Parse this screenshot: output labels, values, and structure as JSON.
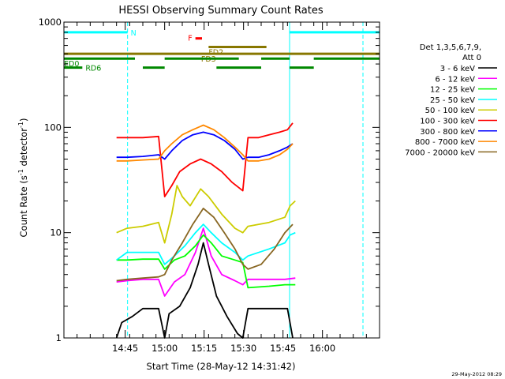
{
  "chart_data": {
    "type": "line",
    "title": "HESSI Observing Summary Count Rates",
    "xlabel": "Start Time (28-May-12 14:31:42)",
    "ylabel_main": "Count Rate (s",
    "ylabel_sup1": "-1",
    "ylabel_mid": " detector",
    "ylabel_sup2": "-1",
    "ylabel_end": ")",
    "y_scale": "log",
    "ylim": [
      1,
      1000
    ],
    "xlim_minutes": [
      -10,
      110
    ],
    "x_ticks": [
      {
        "label": "14:45",
        "minutes": 13.3
      },
      {
        "label": "15:00",
        "minutes": 28.3
      },
      {
        "label": "15:15",
        "minutes": 43.3
      },
      {
        "label": "15:30",
        "minutes": 58.3
      },
      {
        "label": "15:45",
        "minutes": 73.3
      },
      {
        "label": "16:00",
        "minutes": 88.3
      }
    ],
    "y_ticks": [
      {
        "label": "1",
        "value": 1
      },
      {
        "label": "10",
        "value": 10
      },
      {
        "label": "100",
        "value": 100
      },
      {
        "label": "1000",
        "value": 1000
      }
    ],
    "legend_header": [
      "Det 1,3,5,6,7,9,",
      "Att 0"
    ],
    "legend_placement": "right",
    "series": [
      {
        "name": "3 - 6 keV",
        "color": "#000000",
        "points": [
          [
            10,
            1.0
          ],
          [
            12,
            1.4
          ],
          [
            16,
            1.6
          ],
          [
            20,
            1.9
          ],
          [
            26,
            1.9
          ],
          [
            28.3,
            1.0
          ],
          [
            30,
            1.7
          ],
          [
            34,
            2.0
          ],
          [
            38,
            3.0
          ],
          [
            41,
            5.0
          ],
          [
            43,
            8.0
          ],
          [
            45,
            5.0
          ],
          [
            48,
            2.5
          ],
          [
            52,
            1.6
          ],
          [
            56,
            1.1
          ],
          [
            58,
            1.0
          ],
          [
            60,
            1.9
          ],
          [
            70,
            1.9
          ],
          [
            75,
            1.9
          ],
          [
            77,
            1.0
          ]
        ]
      },
      {
        "name": "6 - 12 keV",
        "color": "#ff00ff",
        "points": [
          [
            10,
            3.4
          ],
          [
            14,
            3.5
          ],
          [
            20,
            3.6
          ],
          [
            26,
            3.6
          ],
          [
            28.3,
            2.5
          ],
          [
            32,
            3.4
          ],
          [
            36,
            4.0
          ],
          [
            40,
            6.5
          ],
          [
            43,
            11.0
          ],
          [
            46,
            6.0
          ],
          [
            50,
            4.0
          ],
          [
            55,
            3.5
          ],
          [
            58,
            3.2
          ],
          [
            60,
            3.6
          ],
          [
            68,
            3.6
          ],
          [
            74,
            3.6
          ],
          [
            78,
            3.7
          ]
        ]
      },
      {
        "name": "12 - 25 keV",
        "color": "#00ff00",
        "points": [
          [
            10,
            5.5
          ],
          [
            14,
            5.5
          ],
          [
            20,
            5.6
          ],
          [
            26,
            5.6
          ],
          [
            28.3,
            4.5
          ],
          [
            32,
            5.5
          ],
          [
            36,
            6.0
          ],
          [
            40,
            7.5
          ],
          [
            43,
            9.5
          ],
          [
            46,
            8.0
          ],
          [
            50,
            6.0
          ],
          [
            55,
            5.5
          ],
          [
            58,
            5.2
          ],
          [
            60,
            3.0
          ],
          [
            68,
            3.1
          ],
          [
            74,
            3.2
          ],
          [
            78,
            3.2
          ]
        ]
      },
      {
        "name": "25 - 50 keV",
        "color": "#00ffff",
        "points": [
          [
            10,
            5.5
          ],
          [
            14,
            6.5
          ],
          [
            20,
            6.5
          ],
          [
            26,
            6.5
          ],
          [
            28.3,
            5.0
          ],
          [
            32,
            6.0
          ],
          [
            36,
            7.5
          ],
          [
            40,
            10.0
          ],
          [
            43,
            12.0
          ],
          [
            46,
            10.0
          ],
          [
            50,
            8.0
          ],
          [
            55,
            6.5
          ],
          [
            58,
            5.5
          ],
          [
            60,
            6.0
          ],
          [
            68,
            7.0
          ],
          [
            74,
            8.0
          ],
          [
            76,
            9.5
          ],
          [
            78,
            10.0
          ]
        ]
      },
      {
        "name": "50 - 100 keV",
        "color": "#cccc00",
        "points": [
          [
            10,
            10.0
          ],
          [
            14,
            11.0
          ],
          [
            20,
            11.5
          ],
          [
            26,
            12.5
          ],
          [
            28.3,
            8.0
          ],
          [
            31,
            15.0
          ],
          [
            33,
            28.0
          ],
          [
            35,
            22.0
          ],
          [
            38,
            18.0
          ],
          [
            42,
            26.0
          ],
          [
            45,
            22.0
          ],
          [
            50,
            15.0
          ],
          [
            55,
            11.0
          ],
          [
            58,
            10.0
          ],
          [
            60,
            11.5
          ],
          [
            68,
            12.5
          ],
          [
            74,
            14.0
          ],
          [
            76,
            18.0
          ],
          [
            78,
            20.0
          ]
        ]
      },
      {
        "name": "100 - 300 keV",
        "color": "#ff0000",
        "points": [
          [
            10,
            80.0
          ],
          [
            14,
            80.0
          ],
          [
            20,
            80.0
          ],
          [
            26,
            82.0
          ],
          [
            28.3,
            22.0
          ],
          [
            31,
            28.0
          ],
          [
            34,
            38.0
          ],
          [
            38,
            45.0
          ],
          [
            42,
            50.0
          ],
          [
            46,
            45.0
          ],
          [
            50,
            38.0
          ],
          [
            54,
            30.0
          ],
          [
            58,
            25.0
          ],
          [
            60,
            80.0
          ],
          [
            64,
            80.0
          ],
          [
            68,
            85.0
          ],
          [
            72,
            90.0
          ],
          [
            75,
            95.0
          ],
          [
            77,
            110.0
          ]
        ]
      },
      {
        "name": "300 - 800 keV",
        "color": "#0000ff",
        "points": [
          [
            10,
            52.0
          ],
          [
            14,
            52.0
          ],
          [
            20,
            53.0
          ],
          [
            26,
            55.0
          ],
          [
            28.3,
            50.0
          ],
          [
            31,
            60.0
          ],
          [
            35,
            75.0
          ],
          [
            39,
            85.0
          ],
          [
            43,
            90.0
          ],
          [
            47,
            85.0
          ],
          [
            51,
            75.0
          ],
          [
            55,
            62.0
          ],
          [
            58,
            50.0
          ],
          [
            60,
            52.0
          ],
          [
            64,
            52.0
          ],
          [
            68,
            55.0
          ],
          [
            72,
            60.0
          ],
          [
            75,
            65.0
          ],
          [
            77,
            70.0
          ]
        ]
      },
      {
        "name": "800 - 7000 keV",
        "color": "#ff8800",
        "points": [
          [
            10,
            48.0
          ],
          [
            14,
            48.0
          ],
          [
            20,
            49.0
          ],
          [
            26,
            50.0
          ],
          [
            28.3,
            60.0
          ],
          [
            31,
            70.0
          ],
          [
            35,
            85.0
          ],
          [
            39,
            95.0
          ],
          [
            43,
            105.0
          ],
          [
            47,
            95.0
          ],
          [
            51,
            80.0
          ],
          [
            55,
            65.0
          ],
          [
            58,
            55.0
          ],
          [
            60,
            48.0
          ],
          [
            64,
            48.0
          ],
          [
            68,
            50.0
          ],
          [
            72,
            55.0
          ],
          [
            75,
            62.0
          ],
          [
            77,
            70.0
          ]
        ]
      },
      {
        "name": "7000 - 20000 keV",
        "color": "#886622",
        "points": [
          [
            10,
            3.5
          ],
          [
            14,
            3.6
          ],
          [
            20,
            3.7
          ],
          [
            26,
            3.8
          ],
          [
            28.3,
            4.0
          ],
          [
            31,
            5.5
          ],
          [
            35,
            8.0
          ],
          [
            39,
            12.0
          ],
          [
            43,
            17.0
          ],
          [
            47,
            14.0
          ],
          [
            51,
            10.0
          ],
          [
            55,
            7.0
          ],
          [
            58,
            5.0
          ],
          [
            60,
            4.5
          ],
          [
            65,
            5.0
          ],
          [
            70,
            7.0
          ],
          [
            74,
            10.0
          ],
          [
            77,
            12.0
          ]
        ]
      }
    ],
    "flag_bars": [
      {
        "label": "N",
        "color": "#00ffff",
        "label_color": "#00ffff",
        "label_side": "right",
        "value": 800,
        "segments": [
          [
            -10,
            14.2
          ],
          [
            75.8,
            110
          ]
        ]
      },
      {
        "label": "F",
        "color": "#ff0000",
        "label_color": "#ff0000",
        "label_side": "left",
        "value": 700,
        "segments": [
          [
            40,
            42.5
          ]
        ]
      },
      {
        "label": "FD2",
        "color": "#887700",
        "label_color": "#887700",
        "label_side": "left-below",
        "value": 580,
        "segments": [
          [
            45,
            67
          ]
        ]
      },
      {
        "label": "FD3",
        "color": "#887700",
        "label_color": "#887700",
        "label_side": "center-below",
        "value": 500,
        "segments": [
          [
            -10,
            110
          ]
        ]
      },
      {
        "label": "ED0",
        "color": "#008800",
        "label_color": "#008800",
        "label_side": "left-below",
        "value": 450,
        "segments": [
          [
            -10,
            17
          ],
          [
            28.3,
            56.5
          ],
          [
            65,
            75.8
          ],
          [
            85,
            110
          ]
        ]
      },
      {
        "label": "RD6",
        "color": "#008800",
        "label_color": "#008800",
        "label_side": "right",
        "value": 370,
        "segments": [
          [
            -10,
            -3
          ],
          [
            20,
            28.3
          ],
          [
            48,
            65
          ],
          [
            75.8,
            85
          ]
        ]
      }
    ],
    "vertical_markers": [
      {
        "minutes": -10,
        "color": "#00ffff",
        "style": "solid"
      },
      {
        "minutes": 14.2,
        "color": "#00ffff",
        "style": "dashed"
      },
      {
        "minutes": 75.8,
        "color": "#00ffff",
        "style": "solid"
      },
      {
        "minutes": 103.7,
        "color": "#00ffff",
        "style": "dashed"
      }
    ]
  },
  "footer_date": "29-May-2012 08:29"
}
